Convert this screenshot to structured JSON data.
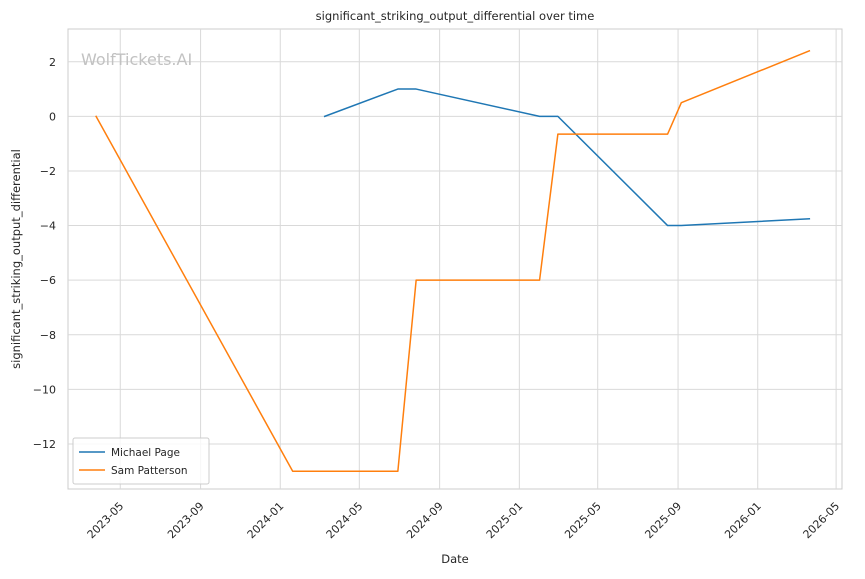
{
  "chart_data": {
    "type": "line",
    "title": "significant_striking_output_differential over time",
    "xlabel": "Date",
    "ylabel": "significant_striking_output_differential",
    "watermark": "WolfTickets.AI",
    "x_axis": "date",
    "xlim": [
      "2023-02-10",
      "2026-05-10"
    ],
    "ylim": [
      -13.65,
      3.2
    ],
    "x_ticks": [
      "2023-05",
      "2023-09",
      "2024-01",
      "2024-05",
      "2024-09",
      "2025-01",
      "2025-05",
      "2025-09",
      "2026-01",
      "2026-05"
    ],
    "y_ticks": [
      2,
      0,
      -2,
      -4,
      -6,
      -8,
      -10,
      -12
    ],
    "y_tick_labels": [
      "2",
      "0",
      "−2",
      "−4",
      "−6",
      "−8",
      "−10",
      "−12"
    ],
    "grid": true,
    "legend_position": "lower-left",
    "series": [
      {
        "name": "Michael Page",
        "color": "#1f77b4",
        "points": [
          [
            "2024-03-09",
            0.0
          ],
          [
            "2024-06-29",
            1.0
          ],
          [
            "2024-07-27",
            1.0
          ],
          [
            "2025-02-01",
            0.0
          ],
          [
            "2025-03-01",
            0.0
          ],
          [
            "2025-08-16",
            -4.0
          ],
          [
            "2025-09-06",
            -4.0
          ],
          [
            "2026-03-21",
            -3.75
          ]
        ]
      },
      {
        "name": "Sam Patterson",
        "color": "#ff7f0e",
        "points": [
          [
            "2023-03-25",
            0.0
          ],
          [
            "2024-01-20",
            -13.0
          ],
          [
            "2024-06-29",
            -13.0
          ],
          [
            "2024-07-27",
            -6.0
          ],
          [
            "2025-02-01",
            -6.0
          ],
          [
            "2025-03-01",
            -0.65
          ],
          [
            "2025-08-16",
            -0.65
          ],
          [
            "2025-09-06",
            0.5
          ],
          [
            "2026-03-21",
            2.4
          ]
        ]
      }
    ]
  }
}
